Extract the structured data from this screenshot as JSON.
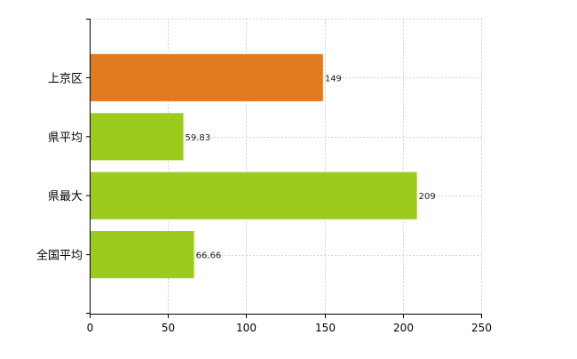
{
  "chart_data": {
    "type": "bar",
    "orientation": "horizontal",
    "title": "",
    "xlabel": "",
    "ylabel": "",
    "categories": [
      "上京区",
      "県平均",
      "県最大",
      "全国平均"
    ],
    "values": [
      149,
      59.83,
      209,
      66.66
    ],
    "value_labels": [
      "149",
      "59.83",
      "209",
      "66.66"
    ],
    "bar_colors": [
      "#e07b22",
      "#9acb1d",
      "#9acb1d",
      "#9acb1d"
    ],
    "xlim": [
      0,
      250
    ],
    "x_ticks": [
      0,
      50,
      100,
      150,
      200,
      250
    ],
    "x_tick_labels": [
      "0",
      "50",
      "100",
      "150",
      "200",
      "250"
    ],
    "grid": true,
    "legend": "none"
  }
}
